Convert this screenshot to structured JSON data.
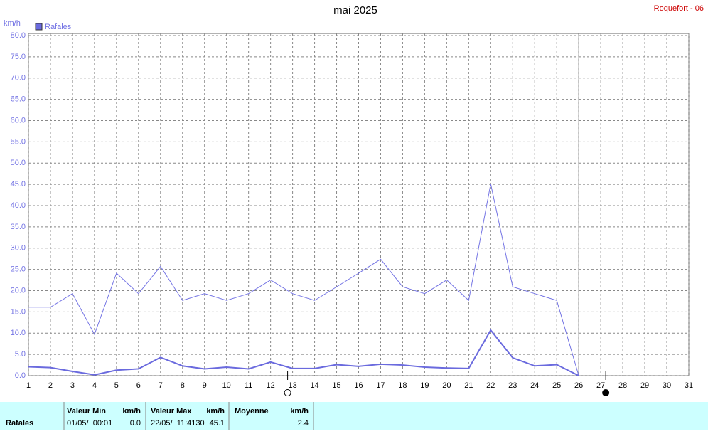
{
  "chart_data": {
    "type": "line",
    "title": "mai 2025",
    "station": "Roquefort - 06",
    "y_unit": "km/h",
    "x": [
      1,
      2,
      3,
      4,
      5,
      6,
      7,
      8,
      9,
      10,
      11,
      12,
      13,
      14,
      15,
      16,
      17,
      18,
      19,
      20,
      21,
      22,
      23,
      24,
      25,
      26,
      27,
      28,
      29,
      30,
      31
    ],
    "series": [
      {
        "name": "Rafales",
        "color": "#7474e4",
        "values": [
          16.1,
          16.1,
          19.3,
          9.7,
          24.1,
          19.3,
          25.7,
          17.7,
          19.3,
          17.7,
          19.3,
          22.5,
          19.3,
          17.7,
          20.9,
          24.1,
          27.4,
          20.9,
          19.3,
          22.5,
          17.7,
          45.1,
          20.9,
          19.3,
          17.7,
          0,
          null,
          null,
          null,
          null,
          null
        ]
      },
      {
        "color": "#6a6ade",
        "values": [
          2.1,
          1.9,
          1.0,
          0.2,
          1.3,
          1.6,
          4.3,
          2.3,
          1.6,
          2.0,
          1.6,
          3.2,
          1.7,
          1.7,
          2.6,
          2.2,
          2.7,
          2.5,
          2.0,
          1.8,
          1.7,
          10.7,
          4.2,
          2.3,
          2.6,
          0,
          null,
          null,
          null,
          null,
          null
        ]
      }
    ],
    "xlim": [
      1,
      31
    ],
    "xticks": [
      1,
      2,
      3,
      4,
      5,
      6,
      7,
      8,
      9,
      10,
      11,
      12,
      13,
      14,
      15,
      16,
      17,
      18,
      19,
      20,
      21,
      22,
      23,
      24,
      25,
      26,
      27,
      28,
      29,
      30,
      31
    ],
    "ylim": [
      0,
      80
    ],
    "yticks": [
      {
        "value": 0,
        "label": "0.0"
      },
      {
        "value": 5,
        "label": "5.0"
      },
      {
        "value": 10,
        "label": "10.0"
      },
      {
        "value": 15,
        "label": "15.0"
      },
      {
        "value": 20,
        "label": "20.0"
      },
      {
        "value": 25,
        "label": "25.0"
      },
      {
        "value": 30,
        "label": "30.0"
      },
      {
        "value": 35,
        "label": "35.0"
      },
      {
        "value": 40,
        "label": "40.0"
      },
      {
        "value": 45,
        "label": "45.0"
      },
      {
        "value": 50,
        "label": "50.0"
      },
      {
        "value": 55,
        "label": "55.0"
      },
      {
        "value": 60,
        "label": "60.0"
      },
      {
        "value": 65,
        "label": "65.0"
      },
      {
        "value": 70,
        "label": "70.0"
      },
      {
        "value": 75,
        "label": "75.0"
      },
      {
        "value": 80,
        "label": "80.0"
      }
    ],
    "grid": true
  },
  "table": {
    "header": [
      "Valeur Min",
      "km/h",
      "Valeur Max",
      "km/h",
      "Moyenne",
      "km/h"
    ],
    "rows": [
      [
        "Rafales",
        "01/05/  00:01",
        "0.0",
        "22/05/  11:4130",
        "45.1",
        "2.4"
      ]
    ]
  }
}
